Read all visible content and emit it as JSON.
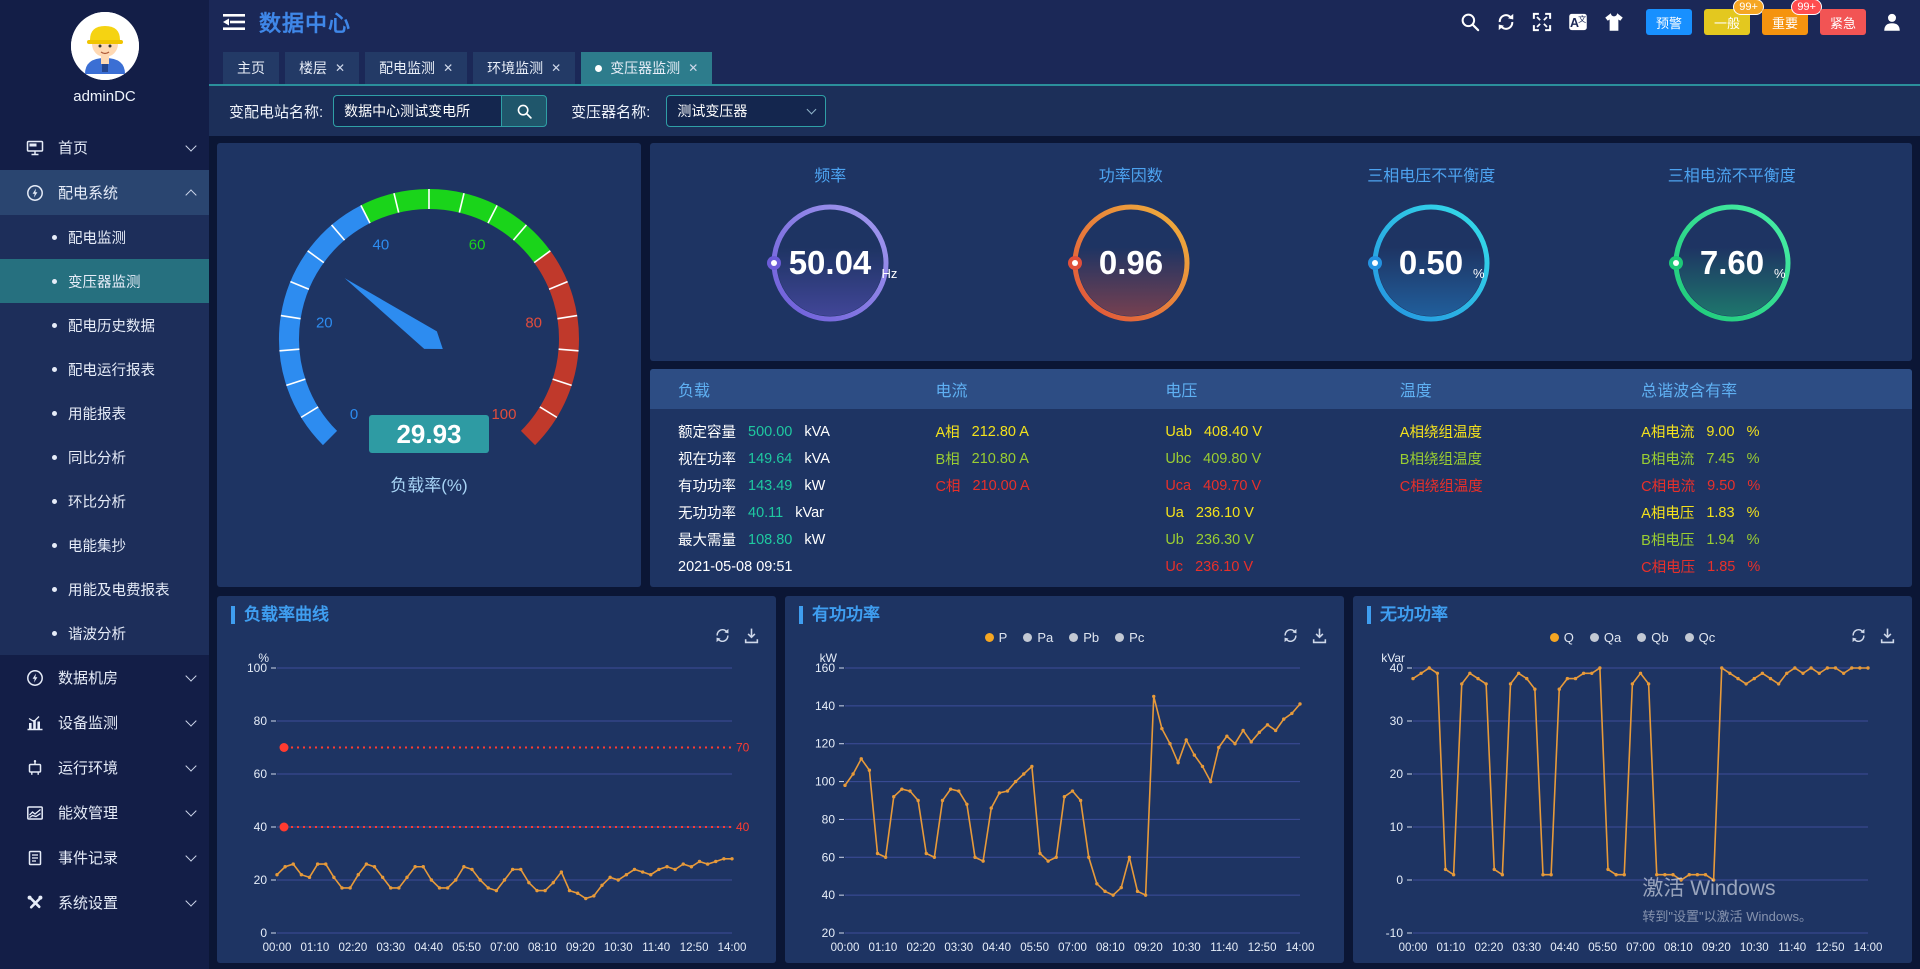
{
  "app": {
    "title": "数据中心"
  },
  "topbar": {
    "icons": [
      "search",
      "refresh",
      "fullscreen",
      "language",
      "theme",
      "user"
    ],
    "alarm_buttons": [
      {
        "label": "预警",
        "color": "#1890ff",
        "badge": null,
        "badge_color": null
      },
      {
        "label": "一般",
        "color": "#e3c81f",
        "badge": "99+",
        "badge_color": "#f5a623"
      },
      {
        "label": "重要",
        "color": "#f5930f",
        "badge": "99+",
        "badge_color": "#ff4d4f"
      },
      {
        "label": "紧急",
        "color": "#f25454",
        "badge": null,
        "badge_color": null
      }
    ]
  },
  "tabs": [
    {
      "label": "主页",
      "closable": false,
      "active": false
    },
    {
      "label": "楼层",
      "closable": true,
      "active": false
    },
    {
      "label": "配电监测",
      "closable": true,
      "active": false
    },
    {
      "label": "环境监测",
      "closable": true,
      "active": false
    },
    {
      "label": "变压器监测",
      "closable": true,
      "active": true
    }
  ],
  "filters": {
    "station_label": "变配电站名称:",
    "station_value": "数据中心测试变电所",
    "transformer_label": "变压器名称:",
    "transformer_value": "测试变压器"
  },
  "sidebar": {
    "username": "adminDC",
    "menu": [
      {
        "label": "首页",
        "icon": "home",
        "expanded": false
      },
      {
        "label": "配电系统",
        "icon": "power",
        "expanded": true,
        "active": true,
        "children": [
          {
            "label": "配电监测",
            "active": false
          },
          {
            "label": "变压器监测",
            "active": true
          },
          {
            "label": "配电历史数据",
            "active": false
          },
          {
            "label": "配电运行报表",
            "active": false
          },
          {
            "label": "用能报表",
            "active": false
          },
          {
            "label": "同比分析",
            "active": false
          },
          {
            "label": "环比分析",
            "active": false
          },
          {
            "label": "电能集抄",
            "active": false
          },
          {
            "label": "用能及电费报表",
            "active": false
          },
          {
            "label": "谐波分析",
            "active": false
          }
        ]
      },
      {
        "label": "数据机房",
        "icon": "power2",
        "expanded": false
      },
      {
        "label": "设备监测",
        "icon": "chart-bars",
        "expanded": false
      },
      {
        "label": "运行环境",
        "icon": "device",
        "expanded": false
      },
      {
        "label": "能效管理",
        "icon": "energy",
        "expanded": false
      },
      {
        "label": "事件记录",
        "icon": "events",
        "expanded": false
      },
      {
        "label": "系统设置",
        "icon": "settings",
        "expanded": false
      }
    ]
  },
  "gauge": {
    "value": "29.93",
    "label": "负载率(%)",
    "min": 0,
    "max": 100,
    "ticks": [
      0,
      20,
      40,
      60,
      80,
      100
    ],
    "segments": [
      {
        "from": 0,
        "to": 40,
        "color": "#2d8cf0"
      },
      {
        "from": 40,
        "to": 70,
        "color": "#1ad41a"
      },
      {
        "from": 70,
        "to": 100,
        "color": "#c0392b"
      }
    ],
    "needle_color": "#2d8cf0",
    "value_box_color": "#2e9ba3"
  },
  "rings": [
    {
      "title": "频率",
      "value": "50.04",
      "unit": "Hz",
      "color1": "#a39bf0",
      "color2": "#6c5cd8"
    },
    {
      "title": "功率因数",
      "value": "0.96",
      "unit": "",
      "color1": "#f0b43c",
      "color2": "#e04f3a"
    },
    {
      "title": "三相电压不平衡度",
      "value": "0.50",
      "unit": "%",
      "color1": "#35e0ea",
      "color2": "#2492e0"
    },
    {
      "title": "三相电流不平衡度",
      "value": "7.60",
      "unit": "%",
      "color1": "#49f0a8",
      "color2": "#1dc878"
    }
  ],
  "phase_colors": {
    "a": "#f3e11c",
    "b": "#9acd32",
    "c": "#e8302a"
  },
  "table": {
    "headers": [
      "负载",
      "电流",
      "电压",
      "温度",
      "总谐波含有率"
    ],
    "load_rows": [
      {
        "label": "额定容量",
        "value": "500.00",
        "unit": "kVA"
      },
      {
        "label": "视在功率",
        "value": "149.64",
        "unit": "kVA"
      },
      {
        "label": "有功功率",
        "value": "143.49",
        "unit": "kW"
      },
      {
        "label": "无功功率",
        "value": "40.11",
        "unit": "kVar"
      },
      {
        "label": "最大需量",
        "value": "108.80",
        "unit": "kW"
      },
      {
        "label": "2021-05-08 09:51",
        "value": "",
        "unit": ""
      }
    ],
    "current_rows": [
      {
        "label": "A相",
        "value": "212.80 A",
        "phase": "a"
      },
      {
        "label": "B相",
        "value": "210.80 A",
        "phase": "b"
      },
      {
        "label": "C相",
        "value": "210.00 A",
        "phase": "c"
      }
    ],
    "voltage_rows": [
      {
        "label": "Uab",
        "value": "408.40 V",
        "phase": "a"
      },
      {
        "label": "Ubc",
        "value": "409.80 V",
        "phase": "b"
      },
      {
        "label": "Uca",
        "value": "409.70 V",
        "phase": "c"
      },
      {
        "label": "Ua",
        "value": "236.10 V",
        "phase": "a"
      },
      {
        "label": "Ub",
        "value": "236.30 V",
        "phase": "b"
      },
      {
        "label": "Uc",
        "value": "236.10 V",
        "phase": "c"
      }
    ],
    "temperature_rows": [
      {
        "label": "A相绕组温度",
        "phase": "a"
      },
      {
        "label": "B相绕组温度",
        "phase": "b"
      },
      {
        "label": "C相绕组温度",
        "phase": "c"
      }
    ],
    "thd_rows": [
      {
        "label": "A相电流",
        "value": "9.00",
        "unit": "%",
        "phase": "a"
      },
      {
        "label": "B相电流",
        "value": "7.45",
        "unit": "%",
        "phase": "b"
      },
      {
        "label": "C相电流",
        "value": "9.50",
        "unit": "%",
        "phase": "c"
      },
      {
        "label": "A相电压",
        "value": "1.83",
        "unit": "%",
        "phase": "a"
      },
      {
        "label": "B相电压",
        "value": "1.94",
        "unit": "%",
        "phase": "b"
      },
      {
        "label": "C相电压",
        "value": "1.85",
        "unit": "%",
        "phase": "c"
      }
    ]
  },
  "chart_data": [
    {
      "type": "line",
      "title": "负载率曲线",
      "ylabel": "%",
      "ylim": [
        0,
        100
      ],
      "yticks": [
        0,
        20,
        40,
        60,
        80,
        100
      ],
      "grid": true,
      "legend": [],
      "x_labels": [
        "00:00",
        "01:10",
        "02:20",
        "03:30",
        "04:40",
        "05:50",
        "07:00",
        "08:10",
        "09:20",
        "10:30",
        "11:40",
        "12:50",
        "14:00"
      ],
      "thresholds": [
        {
          "value": 70,
          "label": "70"
        },
        {
          "value": 40,
          "label": "40"
        }
      ],
      "threshold_color": "#ff3b30",
      "series": [
        {
          "name": "负载率",
          "color": "#e79a3a",
          "values": [
            22,
            25,
            26,
            22,
            21,
            26,
            26,
            21,
            17,
            17,
            22,
            26,
            25,
            21,
            17,
            17,
            21,
            25,
            25,
            20,
            17,
            17,
            20,
            25,
            24,
            20,
            17,
            16,
            20,
            24,
            24,
            19,
            16,
            16,
            19,
            23,
            16,
            15,
            13,
            14,
            18,
            21,
            20,
            22,
            24,
            23,
            22,
            24,
            25,
            24,
            26,
            25,
            27,
            26,
            27,
            28,
            28
          ]
        }
      ]
    },
    {
      "type": "line",
      "title": "有功功率",
      "ylabel": "kW",
      "ylim": [
        20,
        160
      ],
      "yticks": [
        20,
        40,
        60,
        80,
        100,
        120,
        140,
        160
      ],
      "grid": true,
      "legend": [
        {
          "label": "P",
          "color": "#f5a623",
          "selected": true
        },
        {
          "label": "Pa",
          "color": "#c3c9d4",
          "selected": false
        },
        {
          "label": "Pb",
          "color": "#c3c9d4",
          "selected": false
        },
        {
          "label": "Pc",
          "color": "#c3c9d4",
          "selected": false
        }
      ],
      "x_labels": [
        "00:00",
        "01:10",
        "02:20",
        "03:30",
        "04:40",
        "05:50",
        "07:00",
        "08:10",
        "09:20",
        "10:30",
        "11:40",
        "12:50",
        "14:00"
      ],
      "thresholds": [],
      "series": [
        {
          "name": "P",
          "color": "#e79a3a",
          "values": [
            98,
            104,
            112,
            106,
            62,
            60,
            92,
            96,
            95,
            90,
            62,
            60,
            90,
            96,
            95,
            88,
            60,
            58,
            86,
            94,
            95,
            100,
            104,
            108,
            62,
            58,
            60,
            92,
            95,
            90,
            60,
            46,
            42,
            40,
            44,
            60,
            42,
            40,
            145,
            128,
            120,
            110,
            122,
            114,
            108,
            100,
            118,
            124,
            120,
            127,
            121,
            126,
            130,
            127,
            133,
            136,
            141
          ]
        }
      ]
    },
    {
      "type": "line",
      "title": "无功功率",
      "ylabel": "kVar",
      "ylim": [
        -10,
        40
      ],
      "yticks": [
        -10,
        0,
        10,
        20,
        30,
        40
      ],
      "grid": true,
      "legend": [
        {
          "label": "Q",
          "color": "#f5a623",
          "selected": true
        },
        {
          "label": "Qa",
          "color": "#c3c9d4",
          "selected": false
        },
        {
          "label": "Qb",
          "color": "#c3c9d4",
          "selected": false
        },
        {
          "label": "Qc",
          "color": "#c3c9d4",
          "selected": false
        }
      ],
      "x_labels": [
        "00:00",
        "01:10",
        "02:20",
        "03:30",
        "04:40",
        "05:50",
        "07:00",
        "08:10",
        "09:20",
        "10:30",
        "11:40",
        "12:50",
        "14:00"
      ],
      "thresholds": [],
      "series": [
        {
          "name": "Q",
          "color": "#e79a3a",
          "values": [
            38,
            39,
            40,
            39,
            2,
            1,
            37,
            39,
            38,
            37,
            2,
            1,
            37,
            39,
            38,
            36,
            1,
            1,
            36,
            38,
            38,
            39,
            39,
            40,
            2,
            1,
            1,
            37,
            39,
            37,
            1,
            1,
            1,
            0,
            1,
            1,
            1,
            0,
            40,
            39,
            38,
            37,
            38,
            39,
            38,
            37,
            39,
            40,
            39,
            40,
            39,
            40,
            40,
            39,
            40,
            40,
            40
          ]
        }
      ]
    }
  ],
  "watermark": {
    "line1": "激活 Windows",
    "line2": "转到\"设置\"以激活 Windows。"
  }
}
